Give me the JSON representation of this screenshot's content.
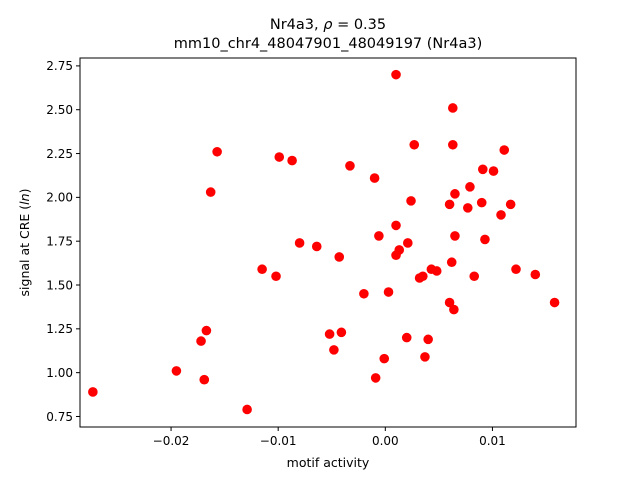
{
  "chart_data": {
    "type": "scatter",
    "title_line1_prefix": "Nr4a3, ",
    "title_rho_symbol": "ρ",
    "title_rho_value": " = 0.35",
    "title_line2": "mm10_chr4_48047901_48049197 (Nr4a3)",
    "xlabel": "motif activity",
    "ylabel_prefix": "signal at CRE (",
    "ylabel_italic": "ln",
    "ylabel_suffix": ")",
    "xlim": [
      -0.0285,
      0.0178
    ],
    "ylim": [
      0.69,
      2.795
    ],
    "xticks": [
      -0.02,
      -0.01,
      0.0,
      0.01
    ],
    "xtick_labels": [
      "−0.02",
      "−0.01",
      "0.00",
      "0.01"
    ],
    "yticks": [
      0.75,
      1.0,
      1.25,
      1.5,
      1.75,
      2.0,
      2.25,
      2.5,
      2.75
    ],
    "ytick_labels": [
      "0.75",
      "1.00",
      "1.25",
      "1.50",
      "1.75",
      "2.00",
      "2.25",
      "2.50",
      "2.75"
    ],
    "marker_color": "#ff0000",
    "grid": false,
    "points": [
      {
        "x": -0.0273,
        "y": 0.89
      },
      {
        "x": -0.0195,
        "y": 1.01
      },
      {
        "x": -0.0172,
        "y": 1.18
      },
      {
        "x": -0.0169,
        "y": 0.96
      },
      {
        "x": -0.0167,
        "y": 1.24
      },
      {
        "x": -0.0163,
        "y": 2.03
      },
      {
        "x": -0.0157,
        "y": 2.26
      },
      {
        "x": -0.0129,
        "y": 0.79
      },
      {
        "x": -0.0115,
        "y": 1.59
      },
      {
        "x": -0.0102,
        "y": 1.55
      },
      {
        "x": -0.0099,
        "y": 2.23
      },
      {
        "x": -0.0087,
        "y": 2.21
      },
      {
        "x": -0.008,
        "y": 1.74
      },
      {
        "x": -0.0064,
        "y": 1.72
      },
      {
        "x": -0.0052,
        "y": 1.22
      },
      {
        "x": -0.0048,
        "y": 1.13
      },
      {
        "x": -0.0043,
        "y": 1.66
      },
      {
        "x": -0.0041,
        "y": 1.23
      },
      {
        "x": -0.0033,
        "y": 2.18
      },
      {
        "x": -0.002,
        "y": 1.45
      },
      {
        "x": -0.001,
        "y": 2.11
      },
      {
        "x": -0.0009,
        "y": 0.97
      },
      {
        "x": -0.0006,
        "y": 1.78
      },
      {
        "x": -0.0001,
        "y": 1.08
      },
      {
        "x": 0.0003,
        "y": 1.46
      },
      {
        "x": 0.001,
        "y": 2.7
      },
      {
        "x": 0.001,
        "y": 1.84
      },
      {
        "x": 0.001,
        "y": 1.67
      },
      {
        "x": 0.0013,
        "y": 1.7
      },
      {
        "x": 0.002,
        "y": 1.2
      },
      {
        "x": 0.0021,
        "y": 1.74
      },
      {
        "x": 0.0024,
        "y": 1.98
      },
      {
        "x": 0.0027,
        "y": 2.3
      },
      {
        "x": 0.0032,
        "y": 1.54
      },
      {
        "x": 0.0035,
        "y": 1.55
      },
      {
        "x": 0.0037,
        "y": 1.09
      },
      {
        "x": 0.004,
        "y": 1.19
      },
      {
        "x": 0.0043,
        "y": 1.59
      },
      {
        "x": 0.0048,
        "y": 1.58
      },
      {
        "x": 0.006,
        "y": 1.96
      },
      {
        "x": 0.006,
        "y": 1.4
      },
      {
        "x": 0.0062,
        "y": 1.63
      },
      {
        "x": 0.0063,
        "y": 2.51
      },
      {
        "x": 0.0063,
        "y": 2.3
      },
      {
        "x": 0.0064,
        "y": 1.36
      },
      {
        "x": 0.0065,
        "y": 2.02
      },
      {
        "x": 0.0065,
        "y": 1.78
      },
      {
        "x": 0.0077,
        "y": 1.94
      },
      {
        "x": 0.0079,
        "y": 2.06
      },
      {
        "x": 0.0083,
        "y": 1.55
      },
      {
        "x": 0.009,
        "y": 1.97
      },
      {
        "x": 0.0091,
        "y": 2.16
      },
      {
        "x": 0.0093,
        "y": 1.76
      },
      {
        "x": 0.0101,
        "y": 2.15
      },
      {
        "x": 0.0108,
        "y": 1.9
      },
      {
        "x": 0.0111,
        "y": 2.27
      },
      {
        "x": 0.0117,
        "y": 1.96
      },
      {
        "x": 0.0122,
        "y": 1.59
      },
      {
        "x": 0.014,
        "y": 1.56
      },
      {
        "x": 0.0158,
        "y": 1.4
      }
    ]
  }
}
